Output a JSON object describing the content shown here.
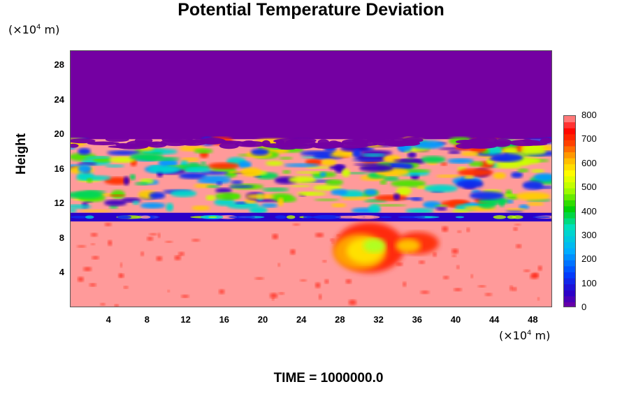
{
  "chart_data": {
    "type": "heatmap",
    "title": "Potential Temperature Deviation",
    "ylabel": "Height",
    "y_unit_prefix": "(×10",
    "y_unit_exp": "4",
    "y_unit_suffix": " m)",
    "x_unit_prefix": "(×10",
    "x_unit_exp": "4",
    "x_unit_suffix": " m)",
    "x_ticks": [
      4,
      8,
      12,
      16,
      20,
      24,
      28,
      32,
      36,
      40,
      44,
      48
    ],
    "y_ticks": [
      4,
      8,
      12,
      16,
      20,
      24,
      28
    ],
    "xlim": [
      0,
      50
    ],
    "ylim": [
      0,
      29.7
    ],
    "colorbar": {
      "range": [
        0,
        800
      ],
      "ticks": [
        0,
        100,
        200,
        300,
        400,
        500,
        600,
        700,
        800
      ]
    },
    "colors": {
      "background_high": "#7400a2",
      "background_low": "#ff9a9a",
      "low_band": "#2a00c8"
    },
    "regions": [
      {
        "name": "stratosphere",
        "y_range": [
          19.5,
          29.7
        ],
        "value": 0
      },
      {
        "name": "turbulent layer",
        "y_range": [
          11,
          19.5
        ],
        "value": "mixed 0-800"
      },
      {
        "name": "dark band",
        "y_range": [
          10,
          11
        ],
        "value": 50
      },
      {
        "name": "lower layer",
        "y_range": [
          0,
          10
        ],
        "value": 800
      },
      {
        "name": "warm plume",
        "x_range": [
          27,
          40
        ],
        "y_range": [
          3,
          10
        ],
        "value": 450
      }
    ],
    "time_label": "TIME = 1000000.0"
  }
}
